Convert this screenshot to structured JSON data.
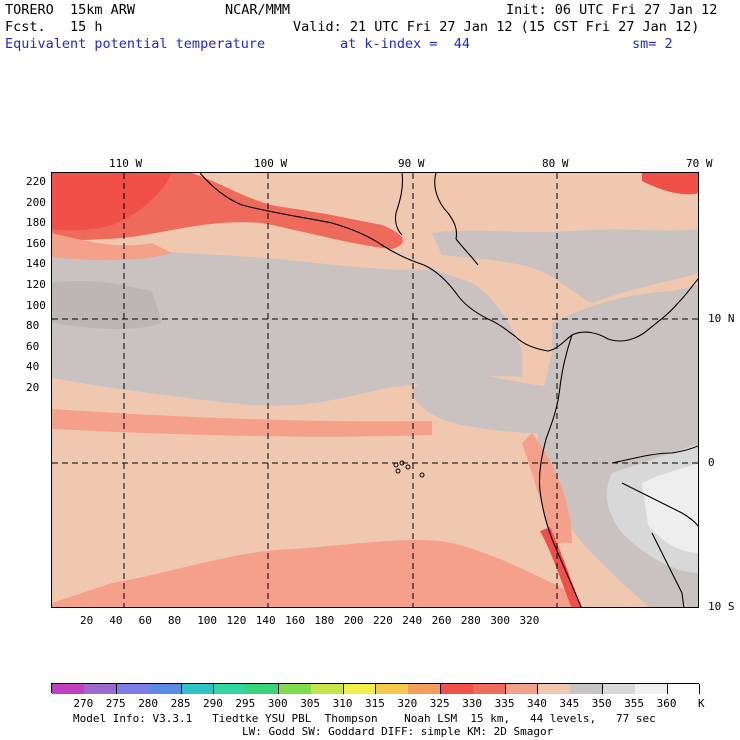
{
  "header": {
    "model": "TORERO  15km ARW",
    "org": "NCAR/MMM",
    "init": "Init: 06 UTC Fri 27 Jan 12",
    "fcst": "Fcst.   15 h",
    "valid": "Valid: 21 UTC Fri 27 Jan 12 (15 CST Fri 27 Jan 12)",
    "field": "Equivalent potential temperature",
    "level": "at k-index =  44",
    "smooth": "sm= 2"
  },
  "map": {
    "top_lon_labels": [
      "110 W",
      "100 W",
      "90 W",
      "80 W",
      "70 W"
    ],
    "right_lat_labels": [
      "10 N",
      "0",
      "10 S"
    ],
    "y_ticks": [
      "220",
      "200",
      "180",
      "160",
      "140",
      "120",
      "100",
      "80",
      "60",
      "40",
      "20"
    ],
    "x_ticks": [
      "20",
      "40",
      "60",
      "80",
      "100",
      "120",
      "140",
      "160",
      "180",
      "200",
      "220",
      "240",
      "260",
      "280",
      "300",
      "320"
    ]
  },
  "colorbar": {
    "labels": [
      "270",
      "275",
      "280",
      "285",
      "290",
      "295",
      "300",
      "305",
      "310",
      "315",
      "320",
      "325",
      "330",
      "335",
      "340",
      "345",
      "350",
      "355",
      "360"
    ],
    "unit": "K",
    "colors": [
      "#c040c0",
      "#9a6ad0",
      "#7d7de8",
      "#5a8ce6",
      "#2cc4c4",
      "#2fd8a0",
      "#37d47a",
      "#7fdc4a",
      "#c8e64a",
      "#f0f046",
      "#f5c84e",
      "#f59e5a",
      "#f05048",
      "#ee6a5a",
      "#f4a08a",
      "#f0c8b0",
      "#c8c4c4",
      "#d8d8d8",
      "#f0f0f0",
      "#ffffff"
    ]
  },
  "footer": {
    "line1": "Model Info: V3.3.1   Tiedtke YSU PBL  Thompson    Noah LSM  15 km,   44 levels,   77 sec",
    "line2": "LW: Godd SW: Goddard DIFF: simple KM: 2D Smagor"
  }
}
